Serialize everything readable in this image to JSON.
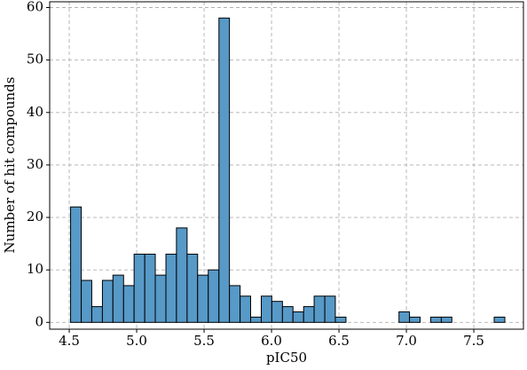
{
  "chart_data": {
    "type": "histogram",
    "x_label": "pIC50",
    "y_label": "Number of hit compounds",
    "bins": [
      4.51,
      4.589,
      4.667,
      4.746,
      4.824,
      4.903,
      4.981,
      5.06,
      5.138,
      5.217,
      5.295,
      5.374,
      5.452,
      5.531,
      5.61,
      5.688,
      5.767,
      5.845,
      5.924,
      6.002,
      6.081,
      6.159,
      6.238,
      6.316,
      6.395,
      6.473,
      6.552,
      6.63,
      6.709,
      6.788,
      6.866,
      6.945,
      7.023,
      7.102,
      7.18,
      7.259,
      7.337,
      7.416,
      7.494,
      7.573,
      7.651,
      7.73
    ],
    "values": [
      22,
      8,
      3,
      8,
      9,
      7,
      13,
      13,
      9,
      13,
      18,
      13,
      9,
      10,
      58,
      7,
      5,
      1,
      5,
      4,
      3,
      2,
      3,
      5,
      5,
      1,
      0,
      0,
      0,
      0,
      0,
      2,
      1,
      0,
      1,
      1,
      0,
      0,
      0,
      0,
      1
    ],
    "color": "#5799c7",
    "xlim": [
      4.355,
      7.868
    ],
    "ylim": [
      -1.3,
      61.1
    ],
    "xticks": [
      {
        "value": 4.5,
        "label": "4.5"
      },
      {
        "value": 5.0,
        "label": "5.0"
      },
      {
        "value": 5.5,
        "label": "5.5"
      },
      {
        "value": 6.0,
        "label": "6.0"
      },
      {
        "value": 6.5,
        "label": "6.5"
      },
      {
        "value": 7.0,
        "label": "7.0"
      },
      {
        "value": 7.5,
        "label": "7.5"
      }
    ],
    "yticks": [
      0,
      10,
      20,
      30,
      40,
      50,
      60
    ],
    "grid": true
  }
}
